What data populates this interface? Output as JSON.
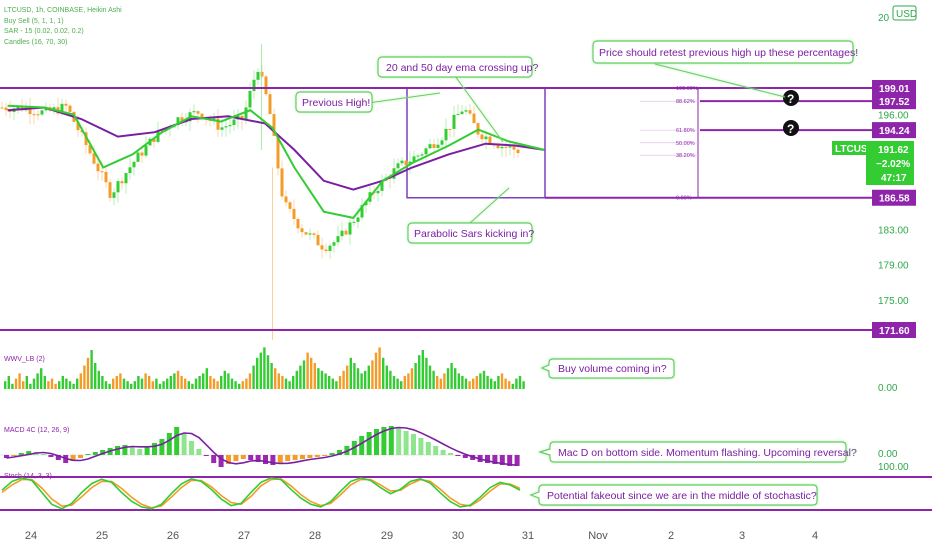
{
  "header": {
    "symbol_line": "LTCUSD, 1h, COINBASE, Heikin Ashi",
    "indicators": [
      "Buy Sell (5, 1, 1, 1)",
      "SAR - 15 (0.02, 0.02, 0.2)",
      "Candles (16, 70, 30)"
    ],
    "currency_badge": "USD",
    "top_value": "20"
  },
  "price_axis": {
    "ticks": [
      {
        "label": "196.00",
        "value": 196.0
      },
      {
        "label": "183.00",
        "value": 183.0
      },
      {
        "label": "179.00",
        "value": 179.0
      },
      {
        "label": "175.00",
        "value": 175.0
      }
    ]
  },
  "levels": [
    {
      "label": "199.01",
      "value": 199.01
    },
    {
      "label": "197.52",
      "value": 197.52
    },
    {
      "label": "194.24",
      "value": 194.24
    },
    {
      "label": "186.58",
      "value": 186.58
    },
    {
      "label": "171.60",
      "value": 171.6
    }
  ],
  "last_price": {
    "symbol": "LTCUSD",
    "price": "191.62",
    "change": "−2.02%",
    "countdown": "47:17",
    "value": 191.62
  },
  "fib_labels": [
    "100.00%",
    "88.62%",
    "61.80%",
    "50.00%",
    "38.20%",
    "0.00%"
  ],
  "x_axis": [
    "24",
    "25",
    "26",
    "27",
    "28",
    "29",
    "30",
    "31",
    "Nov",
    "2",
    "3",
    "4"
  ],
  "annotations": {
    "ema_cross": "20 and 50 day ema crossing up?",
    "previous_high": "Previous High!",
    "retest": "Price should retest previous high up these percentages!",
    "parabolic": "Parabolic Sars kicking in?",
    "buy_volume": "Buy volume coming in?",
    "macd": "Mac D on bottom side. Momentum flashing. Upcoming reversal?",
    "stoch": "Potential fakeout since we are in the middle of stochastic?"
  },
  "volume_pane": {
    "label": "WWV_LB (2)",
    "axis": "0.00"
  },
  "macd_pane": {
    "label": "MACD 4C (12, 26, 9)",
    "axis": "0.00"
  },
  "stoch_pane": {
    "label": "Stoch (14, 3, 3)",
    "axis": "100.00"
  },
  "question_icon": "?",
  "chart_data": {
    "type": "line",
    "title": "LTCUSD, 1h, COINBASE, Heikin Ashi",
    "x_unit": "day",
    "categories": [
      "24",
      "25",
      "26",
      "27",
      "28",
      "29",
      "30",
      "31",
      "Nov",
      "2",
      "3",
      "4"
    ],
    "price_series": [
      {
        "x": 23.7,
        "y": 196.8
      },
      {
        "x": 24.0,
        "y": 196.2
      },
      {
        "x": 24.3,
        "y": 196.9
      },
      {
        "x": 24.6,
        "y": 192.0
      },
      {
        "x": 24.9,
        "y": 187.0
      },
      {
        "x": 25.2,
        "y": 190.5
      },
      {
        "x": 25.5,
        "y": 193.5
      },
      {
        "x": 25.8,
        "y": 195.5
      },
      {
        "x": 26.1,
        "y": 196.3
      },
      {
        "x": 26.4,
        "y": 194.5
      },
      {
        "x": 26.7,
        "y": 195.5
      },
      {
        "x": 26.9,
        "y": 201.5
      },
      {
        "x": 27.05,
        "y": 197.0
      },
      {
        "x": 27.25,
        "y": 186.0
      },
      {
        "x": 27.5,
        "y": 183.0
      },
      {
        "x": 27.8,
        "y": 181.0
      },
      {
        "x": 28.0,
        "y": 181.8
      },
      {
        "x": 28.2,
        "y": 184.0
      },
      {
        "x": 28.5,
        "y": 187.5
      },
      {
        "x": 28.8,
        "y": 190.0
      },
      {
        "x": 29.1,
        "y": 191.5
      },
      {
        "x": 29.4,
        "y": 193.5
      },
      {
        "x": 29.7,
        "y": 196.8
      },
      {
        "x": 29.9,
        "y": 194.0
      },
      {
        "x": 30.2,
        "y": 192.5
      },
      {
        "x": 30.5,
        "y": 191.8
      },
      {
        "x": 30.8,
        "y": 191.6
      }
    ],
    "ema20": [
      {
        "x": 23.5,
        "y": 197.0
      },
      {
        "x": 24.0,
        "y": 196.8
      },
      {
        "x": 24.4,
        "y": 196.0
      },
      {
        "x": 24.8,
        "y": 190.0
      },
      {
        "x": 25.2,
        "y": 191.5
      },
      {
        "x": 25.6,
        "y": 194.0
      },
      {
        "x": 26.0,
        "y": 195.8
      },
      {
        "x": 26.4,
        "y": 195.2
      },
      {
        "x": 26.8,
        "y": 196.5
      },
      {
        "x": 27.1,
        "y": 194.5
      },
      {
        "x": 27.4,
        "y": 190.0
      },
      {
        "x": 27.8,
        "y": 185.0
      },
      {
        "x": 28.2,
        "y": 184.3
      },
      {
        "x": 28.6,
        "y": 188.5
      },
      {
        "x": 29.0,
        "y": 190.5
      },
      {
        "x": 29.5,
        "y": 192.5
      },
      {
        "x": 29.9,
        "y": 194.3
      },
      {
        "x": 30.3,
        "y": 193.0
      },
      {
        "x": 30.8,
        "y": 192.0
      }
    ],
    "ema50": [
      {
        "x": 23.5,
        "y": 196.5
      },
      {
        "x": 24.0,
        "y": 196.8
      },
      {
        "x": 24.5,
        "y": 195.5
      },
      {
        "x": 25.0,
        "y": 193.5
      },
      {
        "x": 25.5,
        "y": 194.0
      },
      {
        "x": 26.0,
        "y": 195.5
      },
      {
        "x": 26.5,
        "y": 195.8
      },
      {
        "x": 27.0,
        "y": 195.0
      },
      {
        "x": 27.4,
        "y": 192.0
      },
      {
        "x": 27.8,
        "y": 188.5
      },
      {
        "x": 28.2,
        "y": 187.5
      },
      {
        "x": 28.6,
        "y": 188.5
      },
      {
        "x": 29.0,
        "y": 190.0
      },
      {
        "x": 29.5,
        "y": 191.5
      },
      {
        "x": 30.0,
        "y": 192.7
      },
      {
        "x": 30.4,
        "y": 192.5
      },
      {
        "x": 30.8,
        "y": 192.0
      }
    ],
    "fib_levels": [
      {
        "label": "100.00%",
        "value": 199.01
      },
      {
        "label": "88.62%",
        "value": 197.52
      },
      {
        "label": "61.80%",
        "value": 194.24
      },
      {
        "label": "50.00%",
        "value": 192.8
      },
      {
        "label": "38.20%",
        "value": 191.4
      },
      {
        "label": "0.00%",
        "value": 186.58
      }
    ],
    "ylim": [
      169.5,
      205.0
    ],
    "xlim": [
      23.6,
      35.2
    ],
    "volume_values": [
      3,
      5,
      2,
      4,
      6,
      3,
      5,
      2,
      4,
      6,
      8,
      5,
      3,
      4,
      2,
      3,
      5,
      4,
      3,
      2,
      4,
      6,
      9,
      12,
      15,
      10,
      7,
      5,
      3,
      2,
      4,
      5,
      6,
      4,
      3,
      2,
      3,
      5,
      4,
      6,
      5,
      3,
      4,
      2,
      3,
      4,
      5,
      6,
      7,
      5,
      4,
      3,
      2,
      4,
      5,
      6,
      8,
      5,
      4,
      3,
      5,
      7,
      6,
      4,
      3,
      2,
      3,
      4,
      6,
      9,
      12,
      14,
      16,
      13,
      10,
      8,
      6,
      5,
      4,
      3,
      5,
      7,
      9,
      11,
      14,
      12,
      10,
      8,
      7,
      6,
      5,
      4,
      3,
      5,
      7,
      9,
      12,
      10,
      8,
      6,
      7,
      9,
      11,
      14,
      16,
      12,
      9,
      7,
      5,
      4,
      3,
      5,
      6,
      8,
      10,
      13,
      15,
      12,
      9,
      7,
      5,
      4,
      6,
      8,
      10,
      8,
      6,
      5,
      4,
      3,
      4,
      5,
      6,
      7,
      5,
      4,
      3,
      5,
      6,
      4,
      3,
      2,
      4,
      5,
      3
    ],
    "macd_values": [
      -0.3,
      -0.1,
      0.2,
      0.4,
      0.3,
      0.1,
      -0.2,
      -0.5,
      -0.8,
      -0.6,
      -0.3,
      0.1,
      0.3,
      0.5,
      0.7,
      0.9,
      1.0,
      0.8,
      0.6,
      0.9,
      1.2,
      1.6,
      2.2,
      2.8,
      2.2,
      1.4,
      0.6,
      -0.1,
      -0.8,
      -1.2,
      -0.9,
      -0.6,
      -0.4,
      -0.5,
      -0.7,
      -0.9,
      -1.0,
      -0.8,
      -0.6,
      -0.5,
      -0.4,
      -0.3,
      -0.2,
      -0.1,
      0.2,
      0.5,
      0.9,
      1.4,
      1.9,
      2.3,
      2.6,
      2.8,
      2.9,
      2.7,
      2.4,
      2.1,
      1.7,
      1.3,
      0.9,
      0.5,
      0.2,
      -0.1,
      -0.3,
      -0.5,
      -0.7,
      -0.8,
      -0.9,
      -1.0,
      -1.1,
      -1.1
    ],
    "stoch_k": [
      60,
      80,
      88,
      82,
      55,
      28,
      18,
      30,
      55,
      75,
      85,
      78,
      55,
      35,
      22,
      18,
      28,
      52,
      74,
      86,
      80,
      62,
      40,
      25,
      30,
      55,
      78,
      88,
      84,
      62,
      42,
      28,
      22,
      34,
      58,
      80,
      88,
      82,
      66,
      52,
      62,
      80,
      86,
      76,
      54,
      34,
      22,
      26,
      44,
      66,
      78,
      72,
      60
    ],
    "stoch_d": [
      55,
      72,
      84,
      84,
      65,
      40,
      24,
      26,
      45,
      66,
      80,
      80,
      64,
      44,
      28,
      20,
      24,
      44,
      66,
      82,
      82,
      68,
      48,
      32,
      28,
      46,
      70,
      84,
      86,
      70,
      50,
      34,
      25,
      30,
      50,
      72,
      84,
      84,
      72,
      58,
      60,
      74,
      84,
      80,
      62,
      42,
      28,
      24,
      38,
      58,
      74,
      74,
      64
    ]
  }
}
